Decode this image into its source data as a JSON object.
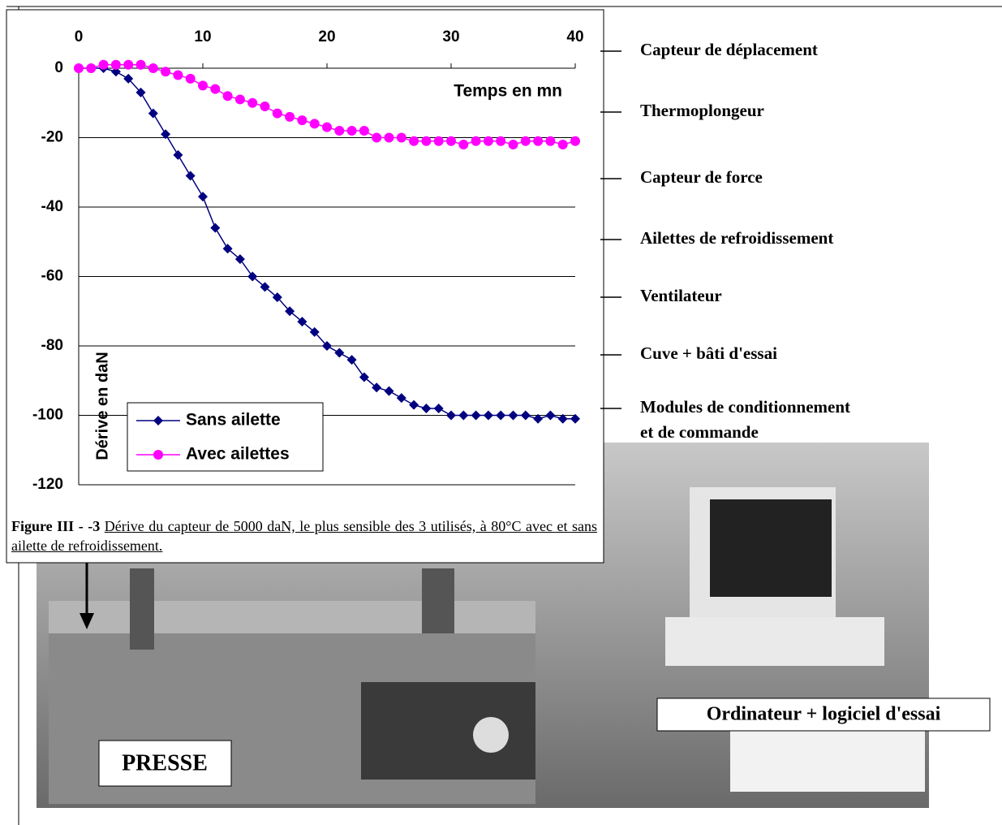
{
  "chart_data": {
    "type": "line",
    "x_label": "Temps en mn",
    "y_label": "Dérive en daN",
    "x": [
      0,
      1,
      2,
      3,
      4,
      5,
      6,
      7,
      8,
      9,
      10,
      11,
      12,
      13,
      14,
      15,
      16,
      17,
      18,
      19,
      20,
      21,
      22,
      23,
      24,
      25,
      26,
      27,
      28,
      29,
      30,
      31,
      32,
      33,
      34,
      35,
      36,
      37,
      38,
      39,
      40
    ],
    "series": [
      {
        "name": "Sans ailette",
        "color": "#000080",
        "marker": "diamond",
        "values": [
          0,
          0,
          0,
          -1,
          -3,
          -7,
          -13,
          -19,
          -25,
          -31,
          -37,
          -46,
          -52,
          -55,
          -60,
          -63,
          -66,
          -70,
          -73,
          -76,
          -80,
          -82,
          -84,
          -89,
          -92,
          -93,
          -95,
          -97,
          -98,
          -98,
          -100,
          -100,
          -100,
          -100,
          -100,
          -100,
          -100,
          -101,
          -100,
          -101,
          -101
        ]
      },
      {
        "name": "Avec ailettes",
        "color": "#ff00ff",
        "marker": "circle",
        "values": [
          0,
          0,
          1,
          1,
          1,
          1,
          0,
          -1,
          -2,
          -3,
          -5,
          -6,
          -8,
          -9,
          -10,
          -11,
          -13,
          -14,
          -15,
          -16,
          -17,
          -18,
          -18,
          -18,
          -20,
          -20,
          -20,
          -21,
          -21,
          -21,
          -21,
          -22,
          -21,
          -21,
          -21,
          -22,
          -21,
          -21,
          -21,
          -22,
          -21
        ]
      }
    ],
    "xlim": [
      0,
      40
    ],
    "xticks": [
      0,
      10,
      20,
      30,
      40
    ],
    "ylim": [
      -120,
      0
    ],
    "yticks": [
      0,
      -20,
      -40,
      -60,
      -80,
      -100,
      -120
    ],
    "grid": true
  },
  "caption": {
    "label": "Figure III - -3",
    "text": "Dérive du capteur de 5000 daN, le plus sensible des 3 utilisés, à 80°C avec et sans ailette de refroidissement."
  },
  "callouts": [
    [
      "Capteur de déplacement"
    ],
    [
      "Thermoplongeur"
    ],
    [
      "Capteur de force"
    ],
    [
      "Ailettes de refroidissement"
    ],
    [
      "Ventilateur"
    ],
    [
      "Cuve + bâti d'essai"
    ],
    [
      "Modules de conditionnement",
      "et de commande"
    ]
  ],
  "photo_labels": [
    "PRESSE",
    "Ordinateur + logiciel d'essai"
  ]
}
